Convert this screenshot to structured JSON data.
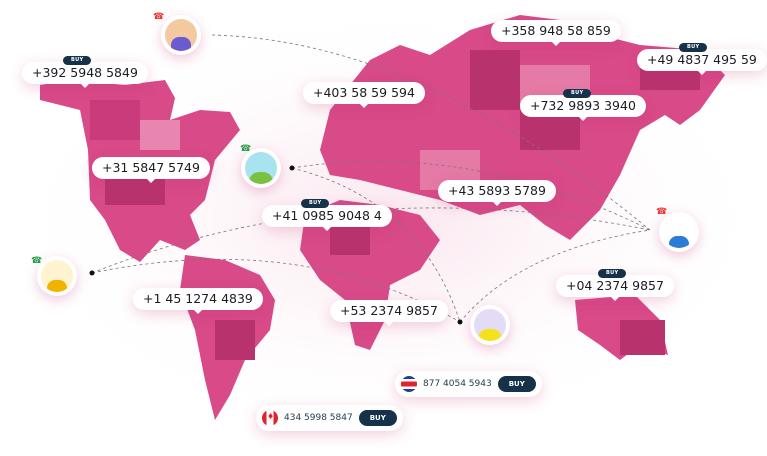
{
  "colors": {
    "map": "#d84a88",
    "map_dark": "#b8336e",
    "map_light": "#e57aa6",
    "badge": "#16324a"
  },
  "buy_label": "BUY",
  "bubbles": [
    {
      "number": "+392 5948 5849",
      "buy": true
    },
    {
      "number": "+403 58 59 594",
      "buy": false
    },
    {
      "number": "+358 948 58 859",
      "buy": false
    },
    {
      "number": "+49 4837 495 59",
      "buy": true
    },
    {
      "number": "+732 9893 3940",
      "buy": true
    },
    {
      "number": "+31 5847 5749",
      "buy": false
    },
    {
      "number": "+41 0985 9048 4",
      "buy": true
    },
    {
      "number": "+43 5893 5789",
      "buy": false
    },
    {
      "number": "+1 45 1274 4839",
      "buy": false
    },
    {
      "number": "+53 2374 9857",
      "buy": false
    },
    {
      "number": "+04 2374 9857",
      "buy": true
    }
  ],
  "pills": [
    {
      "number": "877 4054 5943",
      "flag": "costa-rica-flag",
      "button": "BUY"
    },
    {
      "number": "434 5998 5847",
      "flag": "canada-flag",
      "button": "BUY"
    }
  ],
  "avatars": [
    {
      "icon": "phone-hangup-icon"
    },
    {
      "icon": "phone-call-icon"
    },
    {
      "icon": "phone-call-icon"
    },
    {
      "icon": "phone-hangup-icon"
    },
    {
      "icon": "none"
    }
  ]
}
